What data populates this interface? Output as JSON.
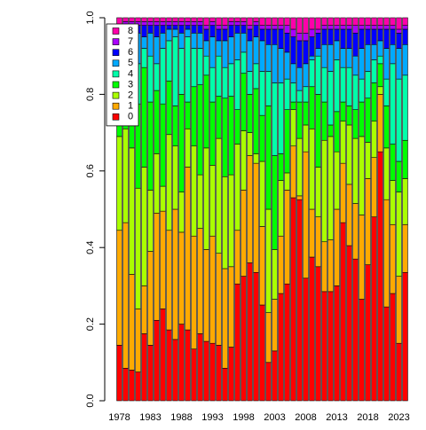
{
  "chart_data": {
    "type": "stacked-bar",
    "categories": [
      "1978",
      null,
      null,
      null,
      null,
      "1983",
      null,
      null,
      null,
      null,
      "1988",
      null,
      null,
      null,
      null,
      "1993",
      null,
      null,
      null,
      null,
      "1998",
      null,
      null,
      null,
      null,
      "2003",
      null,
      null,
      null,
      null,
      "2008",
      null,
      null,
      null,
      null,
      "2013",
      null,
      null,
      null,
      null,
      "2018",
      null,
      null,
      null,
      null,
      "2023",
      null
    ],
    "series": [
      {
        "name": "0",
        "color": "#FF0000",
        "values": [
          0.145,
          0.085,
          0.08,
          0.075,
          0.175,
          0.145,
          0.21,
          0.24,
          0.185,
          0.16,
          0.2,
          0.185,
          0.135,
          0.175,
          0.155,
          0.15,
          0.145,
          0.085,
          0.14,
          0.305,
          0.325,
          0.36,
          0.335,
          0.25,
          0.1,
          0.13,
          0.28,
          0.305,
          0.53,
          0.525,
          0.32,
          0.375,
          0.35,
          0.285,
          0.285,
          0.3,
          0.465,
          0.405,
          0.37,
          0.265,
          0.355,
          0.48,
          0.65,
          0.245,
          0.28,
          0.15,
          0.335
        ]
      },
      {
        "name": "1",
        "color": "#FFAA00",
        "values": [
          0.3,
          0.38,
          0.25,
          0.165,
          0.125,
          0.245,
          0.28,
          0.255,
          0.26,
          0.34,
          0.24,
          0.425,
          0.295,
          0.275,
          0.24,
          0.28,
          0.24,
          0.26,
          0.21,
          0.14,
          0.225,
          0.28,
          0.285,
          0.205,
          0.13,
          0.135,
          0.15,
          0.245,
          0.135,
          0.01,
          0.33,
          0.125,
          0.13,
          0.13,
          0.135,
          0.2,
          0.155,
          0.16,
          0.145,
          0.22,
          0.225,
          0.155,
          0.15,
          0.28,
          0.18,
          0.175,
          0.125
        ]
      },
      {
        "name": "2",
        "color": "#AAFF00",
        "values": [
          0.245,
          0.245,
          0.33,
          0.315,
          0.31,
          0.16,
          0.155,
          0.065,
          0.25,
          0.165,
          0.105,
          0.1,
          0.235,
          0.14,
          0.265,
          0.185,
          0.3,
          0.24,
          0.24,
          0.225,
          0.155,
          0.06,
          0.025,
          0.17,
          0.27,
          0.13,
          0.145,
          0.045,
          0.095,
          0.15,
          0.07,
          0.21,
          0.13,
          0.265,
          0.27,
          0.15,
          0.11,
          0.155,
          0.17,
          0.205,
          0.095,
          0.095,
          0.02,
          0.135,
          0.115,
          0.22,
          0.12
        ]
      },
      {
        "name": "3",
        "color": "#00FF00",
        "values": [
          0.07,
          0.045,
          0.125,
          0.22,
          0.26,
          0.23,
          0.165,
          0.215,
          0.14,
          0.105,
          0.255,
          0.07,
          0.155,
          0.235,
          0.19,
          0.165,
          0.11,
          0.205,
          0.205,
          0.09,
          0.15,
          0.1,
          0.17,
          0.12,
          0.27,
          0.245,
          0.07,
          0.165,
          0.02,
          0.095,
          0.06,
          0.11,
          0.19,
          0.1,
          0.03,
          0.105,
          0.05,
          0.05,
          0.075,
          0.09,
          0.115,
          0.1,
          0.06,
          0.11,
          0.095,
          0.08,
          0.1
        ]
      },
      {
        "name": "4",
        "color": "#00FFAA",
        "values": [
          0.1,
          0.115,
          0.095,
          0.105,
          0.05,
          0.12,
          0.07,
          0.145,
          0.105,
          0.18,
          0.12,
          0.17,
          0.1,
          0.095,
          0.05,
          0.09,
          0.105,
          0.08,
          0.085,
          0.13,
          0.055,
          0.06,
          0.065,
          0.115,
          0.09,
          0.19,
          0.185,
          0.08,
          0.05,
          0.03,
          0.04,
          0.07,
          0.1,
          0.09,
          0.14,
          0.135,
          0.09,
          0.1,
          0.09,
          0.06,
          0.07,
          0.06,
          0.02,
          0.07,
          0.21,
          0.215,
          0.17
        ]
      },
      {
        "name": "5",
        "color": "#00AAFF",
        "values": [
          0.08,
          0.08,
          0.07,
          0.08,
          0.03,
          0.06,
          0.07,
          0.04,
          0.03,
          0.02,
          0.04,
          0.02,
          0.04,
          0.04,
          0.04,
          0.08,
          0.04,
          0.07,
          0.07,
          0.07,
          0.05,
          0.08,
          0.07,
          0.08,
          0.07,
          0.1,
          0.09,
          0.07,
          0.05,
          0.06,
          0.06,
          0.01,
          0.02,
          0.06,
          0.07,
          0.05,
          0.05,
          0.05,
          0.05,
          0.08,
          0.07,
          0.04,
          0.04,
          0.08,
          0.05,
          0.08,
          0.08
        ]
      },
      {
        "name": "6",
        "color": "#0000FF",
        "values": [
          0.03,
          0.03,
          0.03,
          0.02,
          0.03,
          0.02,
          0.03,
          0.02,
          0.01,
          0.01,
          0.02,
          0.01,
          0.02,
          0.02,
          0.03,
          0.03,
          0.03,
          0.03,
          0.03,
          0.02,
          0.02,
          0.03,
          0.03,
          0.03,
          0.04,
          0.04,
          0.05,
          0.05,
          0.07,
          0.07,
          0.06,
          0.05,
          0.04,
          0.04,
          0.04,
          0.03,
          0.05,
          0.05,
          0.06,
          0.05,
          0.04,
          0.04,
          0.03,
          0.05,
          0.04,
          0.04,
          0.04
        ]
      },
      {
        "name": "7",
        "color": "#AA00FF",
        "values": [
          0.01,
          0.01,
          0.01,
          0.01,
          0.01,
          0.01,
          0.01,
          0.01,
          0.01,
          0.01,
          0.01,
          0.01,
          0.01,
          0.01,
          0.01,
          0.01,
          0.01,
          0.01,
          0.01,
          0.01,
          0.01,
          0.01,
          0.01,
          0.01,
          0.01,
          0.01,
          0.01,
          0.02,
          0.02,
          0.02,
          0.02,
          0.02,
          0.01,
          0.01,
          0.01,
          0.01,
          0.01,
          0.01,
          0.02,
          0.01,
          0.01,
          0.01,
          0.01,
          0.01,
          0.01,
          0.01,
          0.01
        ]
      },
      {
        "name": "8",
        "color": "#FF00AA",
        "values": [
          0.02,
          0.01,
          0.01,
          0.01,
          0.01,
          0.01,
          0.01,
          0.01,
          0.01,
          0.01,
          0.01,
          0.01,
          0.01,
          0.01,
          0.02,
          0.01,
          0.02,
          0.02,
          0.01,
          0.01,
          0.01,
          0.02,
          0.01,
          0.02,
          0.02,
          0.02,
          0.02,
          0.02,
          0.03,
          0.04,
          0.04,
          0.03,
          0.03,
          0.02,
          0.02,
          0.02,
          0.02,
          0.02,
          0.02,
          0.02,
          0.02,
          0.02,
          0.02,
          0.02,
          0.02,
          0.03,
          0.02
        ]
      }
    ],
    "ylim": [
      0,
      1
    ],
    "yticks": [
      {
        "value": 0,
        "label": "0.0"
      },
      {
        "value": 0.2,
        "label": "0.2"
      },
      {
        "value": 0.4,
        "label": "0.4"
      },
      {
        "value": 0.6,
        "label": "0.6"
      },
      {
        "value": 0.8,
        "label": "0.8"
      },
      {
        "value": 1,
        "label": "1.0"
      }
    ],
    "legend": "top-left"
  }
}
